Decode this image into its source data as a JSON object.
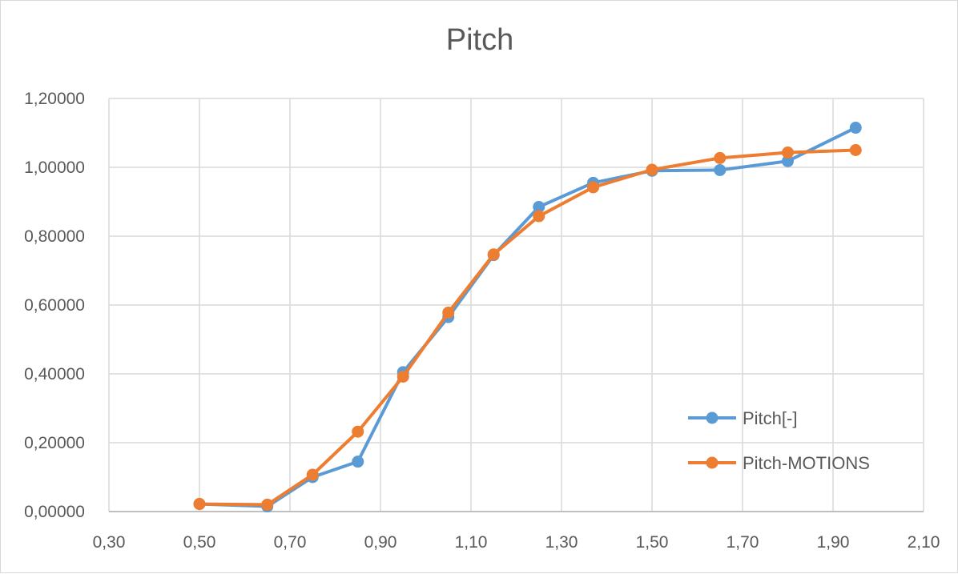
{
  "chart_data": {
    "type": "scatter",
    "title": "Pitch",
    "xlabel": "",
    "ylabel": "",
    "xlim": [
      0.3,
      2.1
    ],
    "ylim": [
      0.0,
      1.2
    ],
    "grid": true,
    "legend_position": "bottom-right",
    "x_ticks": [
      "0,30",
      "0,50",
      "0,70",
      "0,90",
      "1,10",
      "1,30",
      "1,50",
      "1,70",
      "1,90",
      "2,10"
    ],
    "y_ticks": [
      "0,00000",
      "0,20000",
      "0,40000",
      "0,60000",
      "0,80000",
      "1,00000",
      "1,20000"
    ],
    "series": [
      {
        "name": "Pitch[-]",
        "color": "#5b9bd5",
        "x": [
          0.5,
          0.65,
          0.75,
          0.85,
          0.95,
          1.05,
          1.15,
          1.25,
          1.37,
          1.5,
          1.65,
          1.8,
          1.95
        ],
        "y": [
          0.022,
          0.015,
          0.1,
          0.145,
          0.405,
          0.565,
          0.745,
          0.885,
          0.955,
          0.99,
          0.992,
          1.018,
          1.115
        ]
      },
      {
        "name": "Pitch-MOTIONS",
        "color": "#ed7d31",
        "x": [
          0.5,
          0.65,
          0.75,
          0.85,
          0.95,
          1.05,
          1.15,
          1.25,
          1.37,
          1.5,
          1.65,
          1.8,
          1.95
        ],
        "y": [
          0.022,
          0.02,
          0.107,
          0.232,
          0.392,
          0.578,
          0.747,
          0.858,
          0.942,
          0.993,
          1.027,
          1.043,
          1.05
        ]
      }
    ]
  }
}
